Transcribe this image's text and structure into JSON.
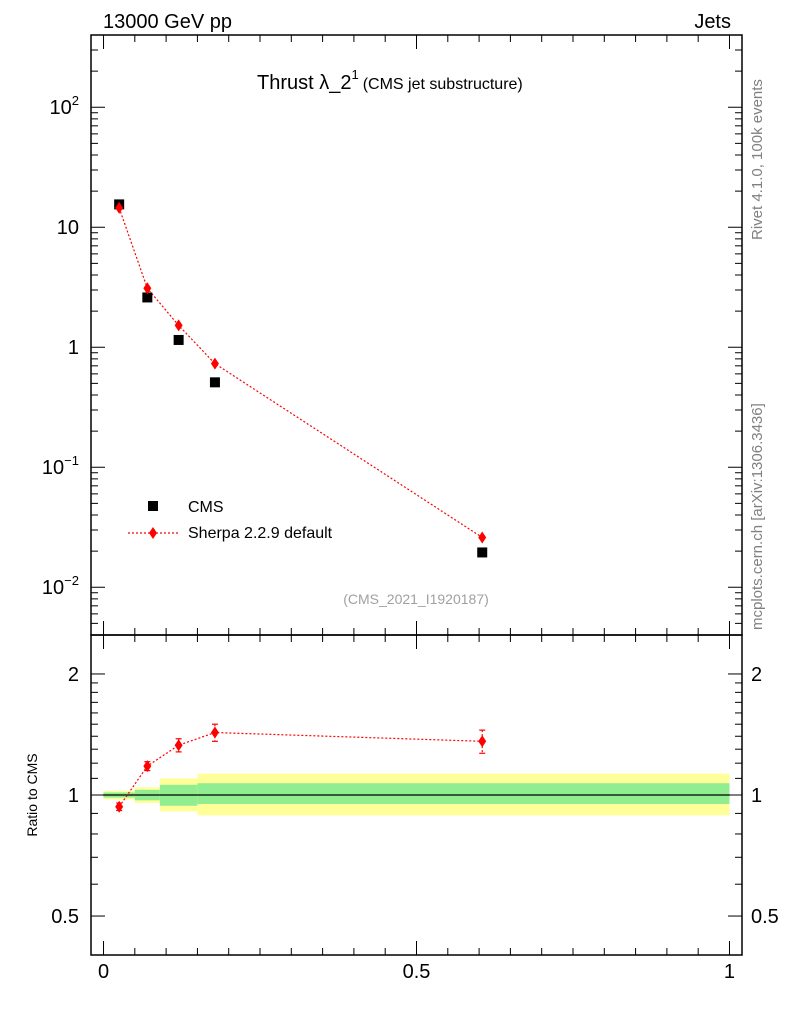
{
  "header": {
    "left": "13000 GeV pp",
    "right": "Jets"
  },
  "side_labels": {
    "rivet": "Rivet 4.1.0,  100k events",
    "mcplots": "mcplots.cern.ch [arXiv:1306.3436]"
  },
  "colors": {
    "data": "#000000",
    "mc": "#ff0000",
    "band_inner": "#90ee90",
    "band_outer": "#ffff99"
  },
  "chart_data": [
    {
      "panel": "main",
      "type": "scatter",
      "title_main": "Thrust λ_2",
      "title_sup": "1",
      "title_sub": "(CMS jet substructure)",
      "analysis_tag": "(CMS_2021_I1920187)",
      "yscale": "log",
      "ylim": [
        0.004,
        400
      ],
      "xlim": [
        -0.02,
        1.02
      ],
      "ytick_labels": [
        {
          "value": 100,
          "base": "10",
          "exp": "2"
        },
        {
          "value": 10,
          "base": "10",
          "exp": ""
        },
        {
          "value": 1,
          "base": "1",
          "exp": ""
        },
        {
          "value": 0.1,
          "base": "10",
          "exp": "−1"
        },
        {
          "value": 0.01,
          "base": "10",
          "exp": "−2"
        }
      ],
      "legend": {
        "position": "bottom-left",
        "entries": [
          "CMS",
          "Sherpa 2.2.9 default"
        ]
      },
      "series": [
        {
          "name": "CMS",
          "style": "square",
          "color": "#000000",
          "x": [
            0.025,
            0.07,
            0.12,
            0.178,
            0.605
          ],
          "y": [
            15.5,
            2.6,
            1.15,
            0.51,
            0.0195
          ]
        },
        {
          "name": "Sherpa 2.2.9 default",
          "style": "diamond-dotted",
          "color": "#ff0000",
          "x": [
            0.025,
            0.07,
            0.12,
            0.178,
            0.605
          ],
          "y": [
            14.5,
            3.1,
            1.52,
            0.73,
            0.026
          ]
        }
      ]
    },
    {
      "panel": "ratio",
      "type": "scatter",
      "ylabel": "Ratio to CMS",
      "yscale": "log",
      "ylim": [
        0.4,
        2.5
      ],
      "xlim": [
        -0.02,
        1.02
      ],
      "ytick_labels": [
        {
          "value": 2,
          "label": "2"
        },
        {
          "value": 1,
          "label": "1"
        },
        {
          "value": 0.5,
          "label": "0.5"
        }
      ],
      "xtick_labels": [
        {
          "value": 0,
          "label": "0"
        },
        {
          "value": 0.5,
          "label": "0.5"
        },
        {
          "value": 1,
          "label": "1"
        }
      ],
      "bands": [
        {
          "x0": 0.0,
          "x1": 0.05,
          "inner": [
            0.985,
            1.015
          ],
          "outer": [
            0.975,
            1.025
          ]
        },
        {
          "x0": 0.05,
          "x1": 0.09,
          "inner": [
            0.97,
            1.03
          ],
          "outer": [
            0.955,
            1.045
          ]
        },
        {
          "x0": 0.09,
          "x1": 0.15,
          "inner": [
            0.94,
            1.06
          ],
          "outer": [
            0.91,
            1.1
          ]
        },
        {
          "x0": 0.15,
          "x1": 1.0,
          "inner": [
            0.95,
            1.07
          ],
          "outer": [
            0.89,
            1.13
          ]
        }
      ],
      "series": [
        {
          "name": "Sherpa 2.2.9 default / CMS",
          "color": "#ff0000",
          "x": [
            0.025,
            0.07,
            0.12,
            0.178,
            0.605
          ],
          "y": [
            0.935,
            1.18,
            1.33,
            1.43,
            1.36
          ],
          "yerr": [
            0.02,
            0.03,
            0.05,
            0.07,
            0.09
          ]
        }
      ]
    }
  ]
}
